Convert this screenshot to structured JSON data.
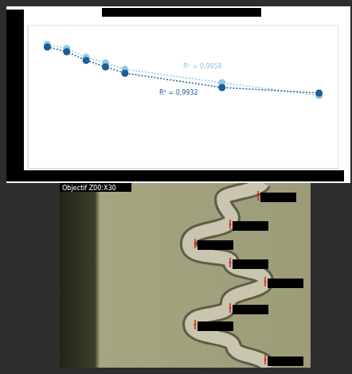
{
  "chart_data": {
    "type": "scatter",
    "x": [
      0.5,
      1,
      1.5,
      2,
      2.5,
      5,
      7.5
    ],
    "series": [
      {
        "color": "#8fcbe3",
        "values": [
          8.67,
          8.39,
          7.78,
          7.39,
          6.94,
          6.0,
          5.11
        ],
        "line_style": "dotted",
        "marker": "circle"
      },
      {
        "color": "#1f5d96",
        "values": [
          8.5,
          8.17,
          7.56,
          7.11,
          6.67,
          5.67,
          5.28
        ],
        "line_style": "dotted",
        "marker": "circle"
      }
    ],
    "xlim": [
      0,
      8
    ],
    "xticks": [
      0,
      1,
      2,
      3,
      4,
      5,
      6,
      7,
      8
    ],
    "ylim": [
      0,
      10
    ],
    "yticks": [
      0,
      1,
      2,
      3,
      4,
      5,
      6,
      7,
      8,
      9,
      10
    ],
    "grid": true,
    "tick_labels": false,
    "annotations": [
      "R² = 0,9958",
      "R² = 0,9932"
    ]
  },
  "photo": {
    "label": "Objectif Z00:X30"
  }
}
